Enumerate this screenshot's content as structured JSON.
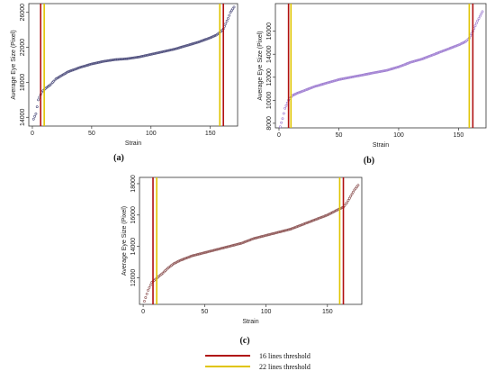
{
  "chart_data": [
    {
      "type": "scatter",
      "panel_label": "(a)",
      "xlabel": "Strain",
      "ylabel": "Average Eye Size (Pixel)",
      "xlim": [
        -3,
        173
      ],
      "ylim": [
        13000,
        27000
      ],
      "xticks": [
        0,
        50,
        100,
        150
      ],
      "yticks": [
        14000,
        18000,
        22000,
        26000
      ],
      "point_color": "#4a4a7a",
      "n_points": 170,
      "curve": [
        [
          1,
          13800
        ],
        [
          3,
          14400
        ],
        [
          5,
          16000
        ],
        [
          8,
          16900
        ],
        [
          11,
          17300
        ],
        [
          15,
          17700
        ],
        [
          20,
          18400
        ],
        [
          25,
          18800
        ],
        [
          30,
          19200
        ],
        [
          40,
          19700
        ],
        [
          50,
          20100
        ],
        [
          60,
          20400
        ],
        [
          70,
          20600
        ],
        [
          80,
          20700
        ],
        [
          90,
          20900
        ],
        [
          100,
          21200
        ],
        [
          110,
          21500
        ],
        [
          120,
          21800
        ],
        [
          130,
          22200
        ],
        [
          140,
          22600
        ],
        [
          150,
          23100
        ],
        [
          155,
          23400
        ],
        [
          158,
          23700
        ],
        [
          161,
          24100
        ],
        [
          163,
          24700
        ],
        [
          165,
          25300
        ],
        [
          167,
          26000
        ],
        [
          170,
          26600
        ]
      ],
      "thresholds": [
        {
          "name": "16 lines threshold",
          "color": "#b01010",
          "x": [
            7,
            161
          ]
        },
        {
          "name": "22 lines threshold",
          "color": "#e0c400",
          "x": [
            10,
            158
          ]
        }
      ]
    },
    {
      "type": "scatter",
      "panel_label": "(b)",
      "xlabel": "Strain",
      "ylabel": "Average Eye Size (Pixel)",
      "xlim": [
        -3,
        173
      ],
      "ylim": [
        7600,
        18400
      ],
      "xticks": [
        0,
        50,
        100,
        150
      ],
      "yticks": [
        8000,
        10000,
        12000,
        14000,
        16000
      ],
      "point_color": "#9c7ad0",
      "n_points": 170,
      "curve": [
        [
          1,
          7700
        ],
        [
          3,
          8400
        ],
        [
          5,
          9300
        ],
        [
          8,
          10000
        ],
        [
          11,
          10400
        ],
        [
          15,
          10600
        ],
        [
          20,
          10800
        ],
        [
          30,
          11200
        ],
        [
          40,
          11500
        ],
        [
          50,
          11800
        ],
        [
          60,
          12000
        ],
        [
          70,
          12200
        ],
        [
          80,
          12400
        ],
        [
          90,
          12600
        ],
        [
          100,
          12900
        ],
        [
          110,
          13300
        ],
        [
          120,
          13600
        ],
        [
          130,
          14000
        ],
        [
          140,
          14400
        ],
        [
          150,
          14800
        ],
        [
          156,
          15100
        ],
        [
          159,
          15400
        ],
        [
          162,
          16000
        ],
        [
          165,
          16700
        ],
        [
          168,
          17300
        ],
        [
          170,
          17700
        ]
      ],
      "thresholds": [
        {
          "name": "16 lines threshold",
          "color": "#b01010",
          "x": [
            8,
            162
          ]
        },
        {
          "name": "22 lines threshold",
          "color": "#e0c400",
          "x": [
            10,
            159
          ]
        }
      ]
    },
    {
      "type": "scatter",
      "panel_label": "(c)",
      "xlabel": "Strain",
      "ylabel": "Average Eye Size (Pixel)",
      "xlim": [
        -3,
        178
      ],
      "ylim": [
        10300,
        18400
      ],
      "xticks": [
        0,
        50,
        100,
        150
      ],
      "yticks": [
        12000,
        14000,
        16000,
        18000
      ],
      "point_color": "#8a5050",
      "n_points": 175,
      "curve": [
        [
          1,
          10500
        ],
        [
          4,
          11200
        ],
        [
          7,
          11700
        ],
        [
          10,
          11900
        ],
        [
          13,
          12100
        ],
        [
          16,
          12300
        ],
        [
          20,
          12600
        ],
        [
          25,
          12900
        ],
        [
          30,
          13100
        ],
        [
          40,
          13400
        ],
        [
          50,
          13600
        ],
        [
          60,
          13800
        ],
        [
          70,
          14000
        ],
        [
          80,
          14200
        ],
        [
          90,
          14500
        ],
        [
          100,
          14700
        ],
        [
          110,
          14900
        ],
        [
          120,
          15100
        ],
        [
          130,
          15400
        ],
        [
          140,
          15700
        ],
        [
          150,
          16000
        ],
        [
          155,
          16200
        ],
        [
          160,
          16400
        ],
        [
          163,
          16500
        ],
        [
          166,
          16800
        ],
        [
          169,
          17200
        ],
        [
          172,
          17600
        ],
        [
          175,
          17900
        ]
      ],
      "thresholds": [
        {
          "name": "16 lines threshold",
          "color": "#b01010",
          "x": [
            8,
            163
          ]
        },
        {
          "name": "22 lines threshold",
          "color": "#e0c400",
          "x": [
            11,
            160
          ]
        }
      ]
    }
  ],
  "legend": [
    {
      "label": "16 lines threshold",
      "color": "#b01010"
    },
    {
      "label": "22 lines threshold",
      "color": "#e0c400"
    }
  ]
}
